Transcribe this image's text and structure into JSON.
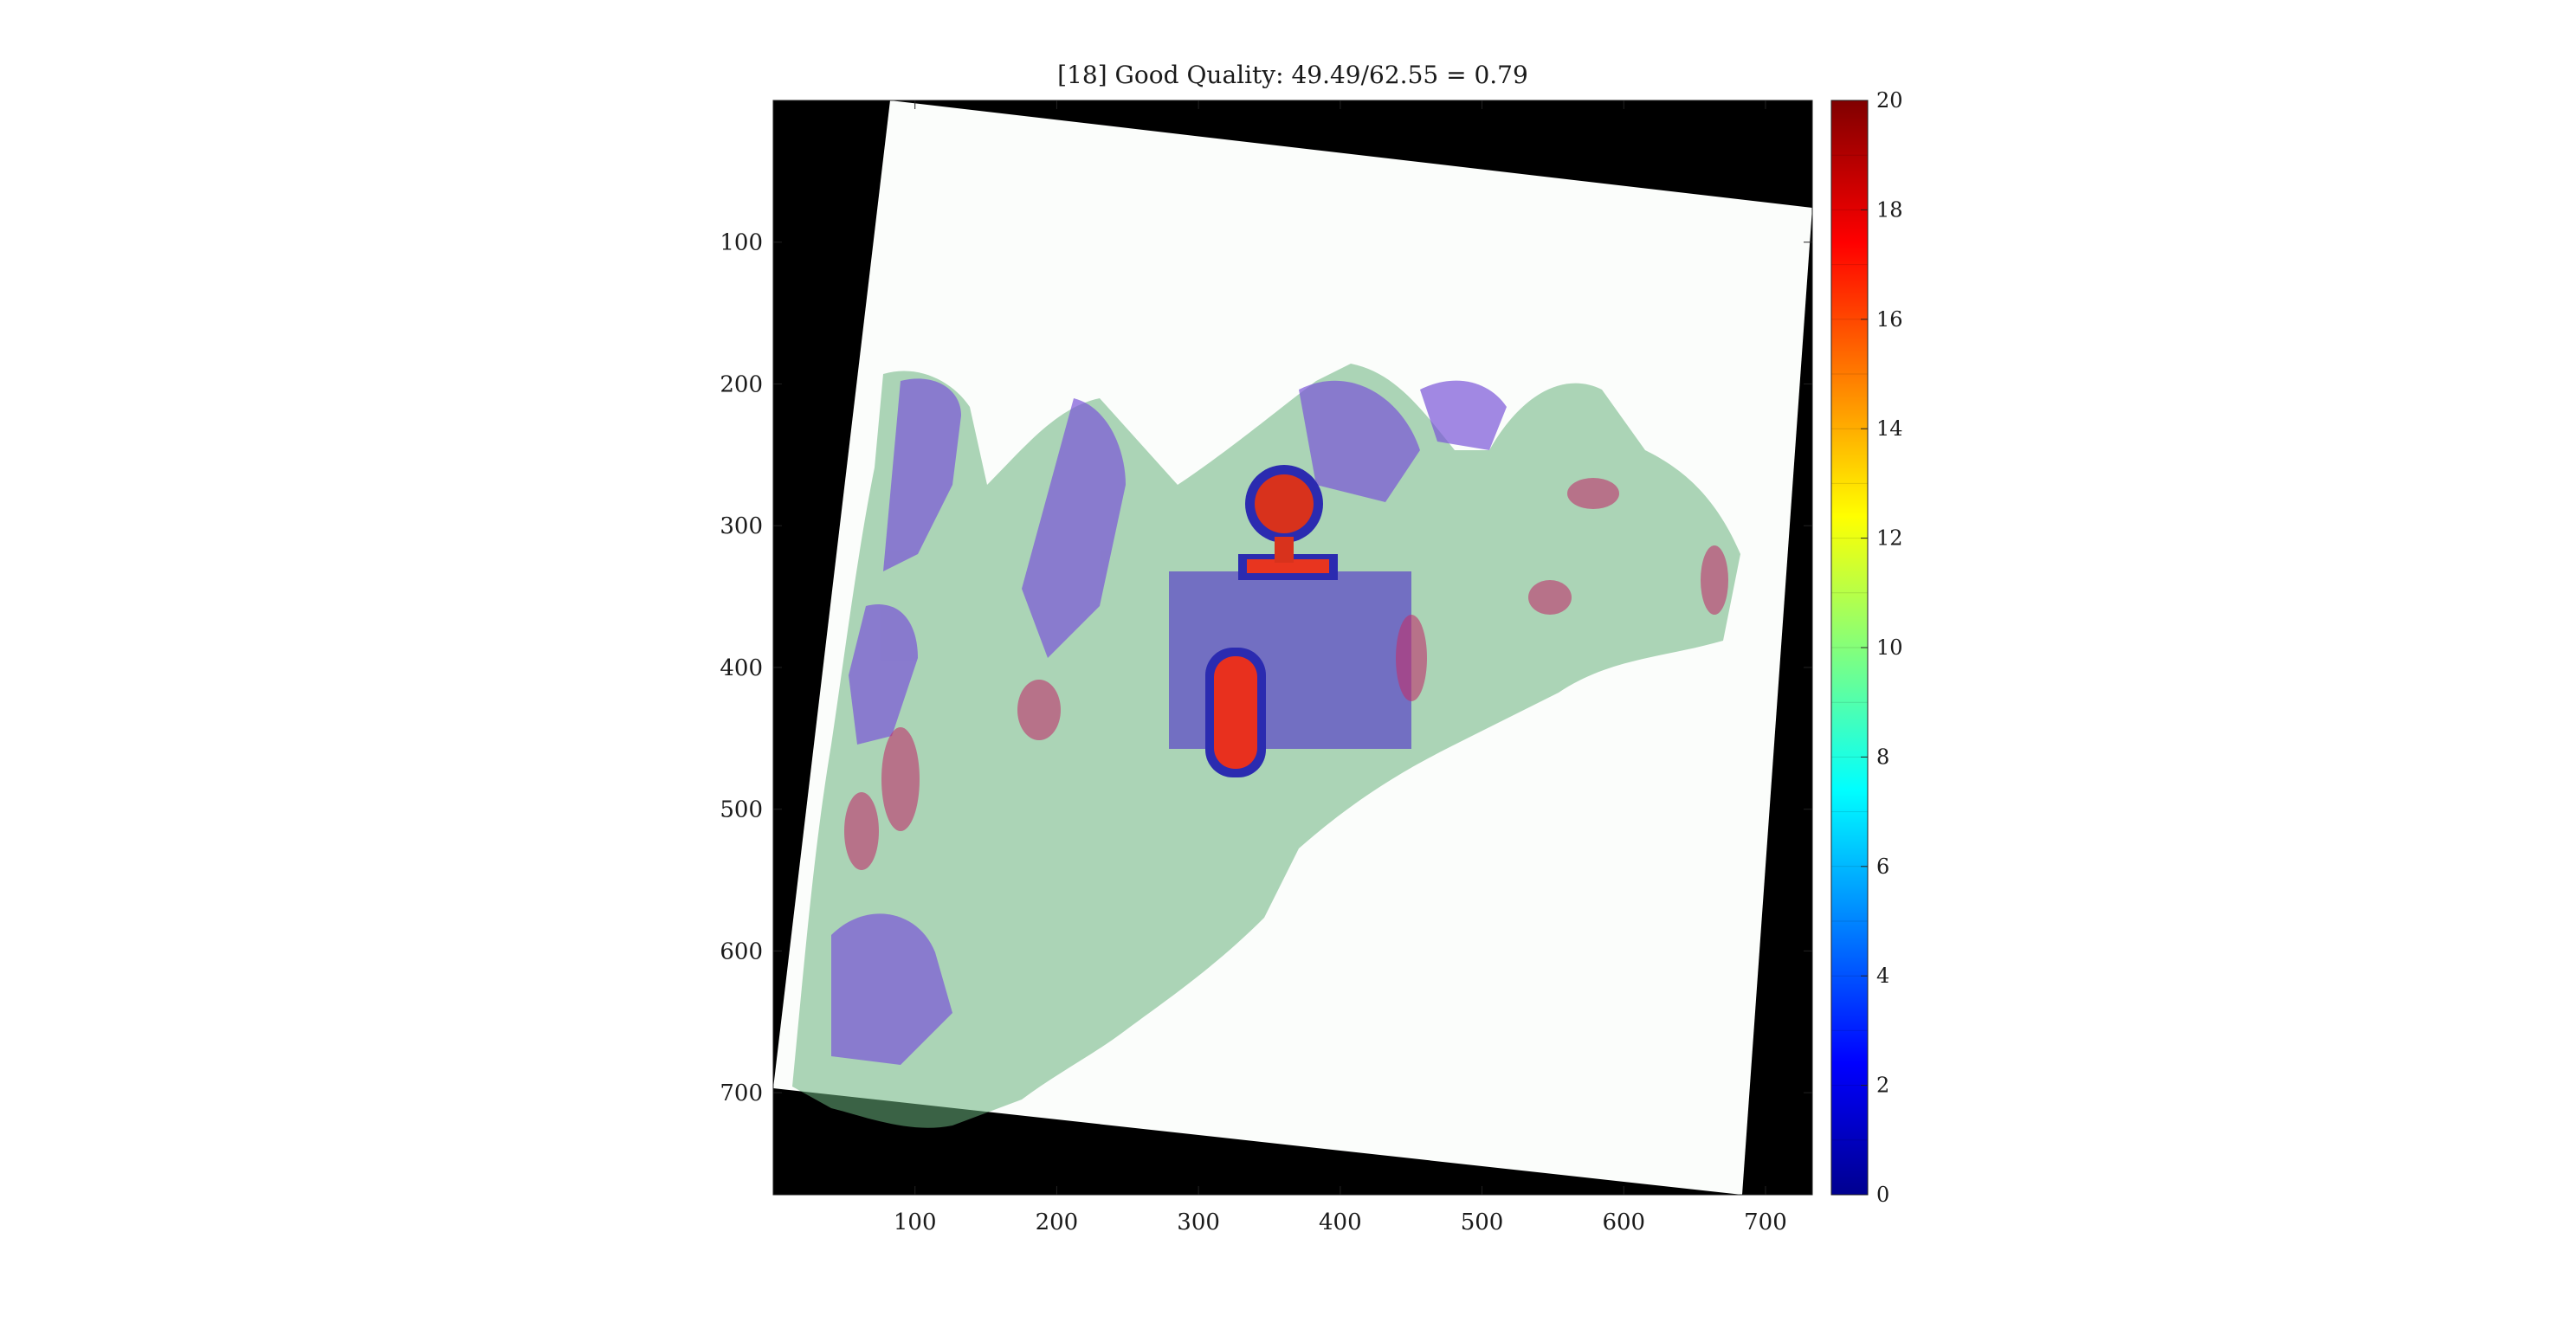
{
  "chart_data": {
    "type": "heatmap",
    "title": "[18] Good Quality: 49.49/62.55 = 0.79",
    "xlabel": "",
    "ylabel": "",
    "x_ticks": [
      100,
      200,
      300,
      400,
      500,
      600,
      700
    ],
    "y_ticks": [
      100,
      200,
      300,
      400,
      500,
      600,
      700
    ],
    "xlim": [
      0,
      733
    ],
    "ylim": [
      772,
      0
    ],
    "grid": false,
    "colorbar": {
      "colormap": "jet",
      "range": [
        0,
        20
      ],
      "levels": 20,
      "ticks": [
        0,
        2,
        4,
        6,
        8,
        10,
        12,
        14,
        16,
        18,
        20
      ]
    },
    "background_image": "rotated histology tissue section with purple/magenta overlay on a black background",
    "overlay_regions": [
      {
        "name": "rectangular region",
        "x_range": [
          277,
          450
        ],
        "y_range": [
          333,
          460
        ],
        "value": 3
      },
      {
        "name": "round cluster with stem",
        "center": [
          355,
          285
        ],
        "value": 17
      },
      {
        "name": "elongated cluster",
        "x_range": [
          305,
          345
        ],
        "y_range": [
          390,
          480
        ],
        "value": 18
      }
    ]
  }
}
